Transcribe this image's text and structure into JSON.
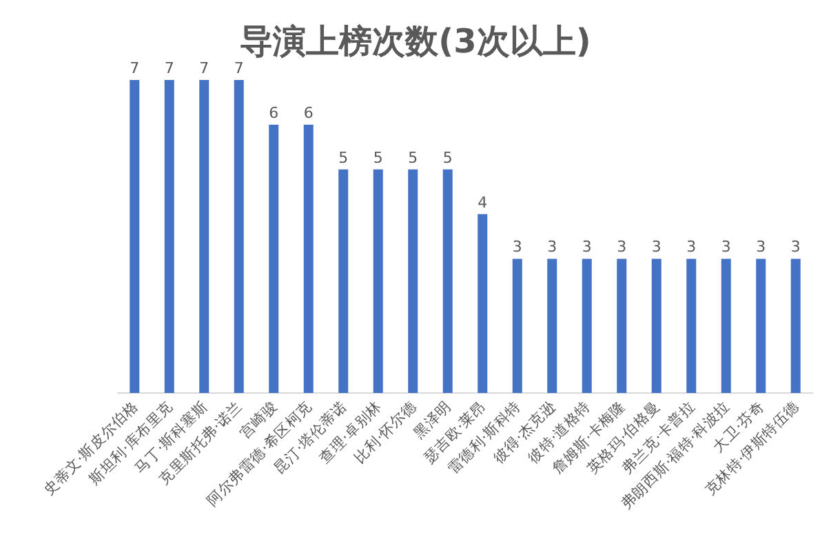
{
  "chart_data": {
    "type": "bar",
    "title": "导演上榜次数(3次以上)",
    "categories": [
      "史蒂文·斯皮尔伯格",
      "斯坦利·库布里克",
      "马丁·斯科塞斯",
      "克里斯托弗·诺兰",
      "宫崎骏",
      "阿尔弗雷德·希区柯克",
      "昆汀·塔伦蒂诺",
      "查理·卓别林",
      "比利·怀尔德",
      "黑泽明",
      "瑟吉欧·莱昂",
      "雷德利·斯科特",
      "彼得·杰克逊",
      "彼特·道格特",
      "詹姆斯·卡梅隆",
      "英格玛·伯格曼",
      "弗兰克·卡普拉",
      "弗朗西斯·福特·科波拉",
      "大卫·芬奇",
      "克林特·伊斯特伍德"
    ],
    "values": [
      7,
      7,
      7,
      7,
      6,
      6,
      5,
      5,
      5,
      5,
      4,
      3,
      3,
      3,
      3,
      3,
      3,
      3,
      3,
      3
    ],
    "color": "#4472c4",
    "data_labels": true
  }
}
